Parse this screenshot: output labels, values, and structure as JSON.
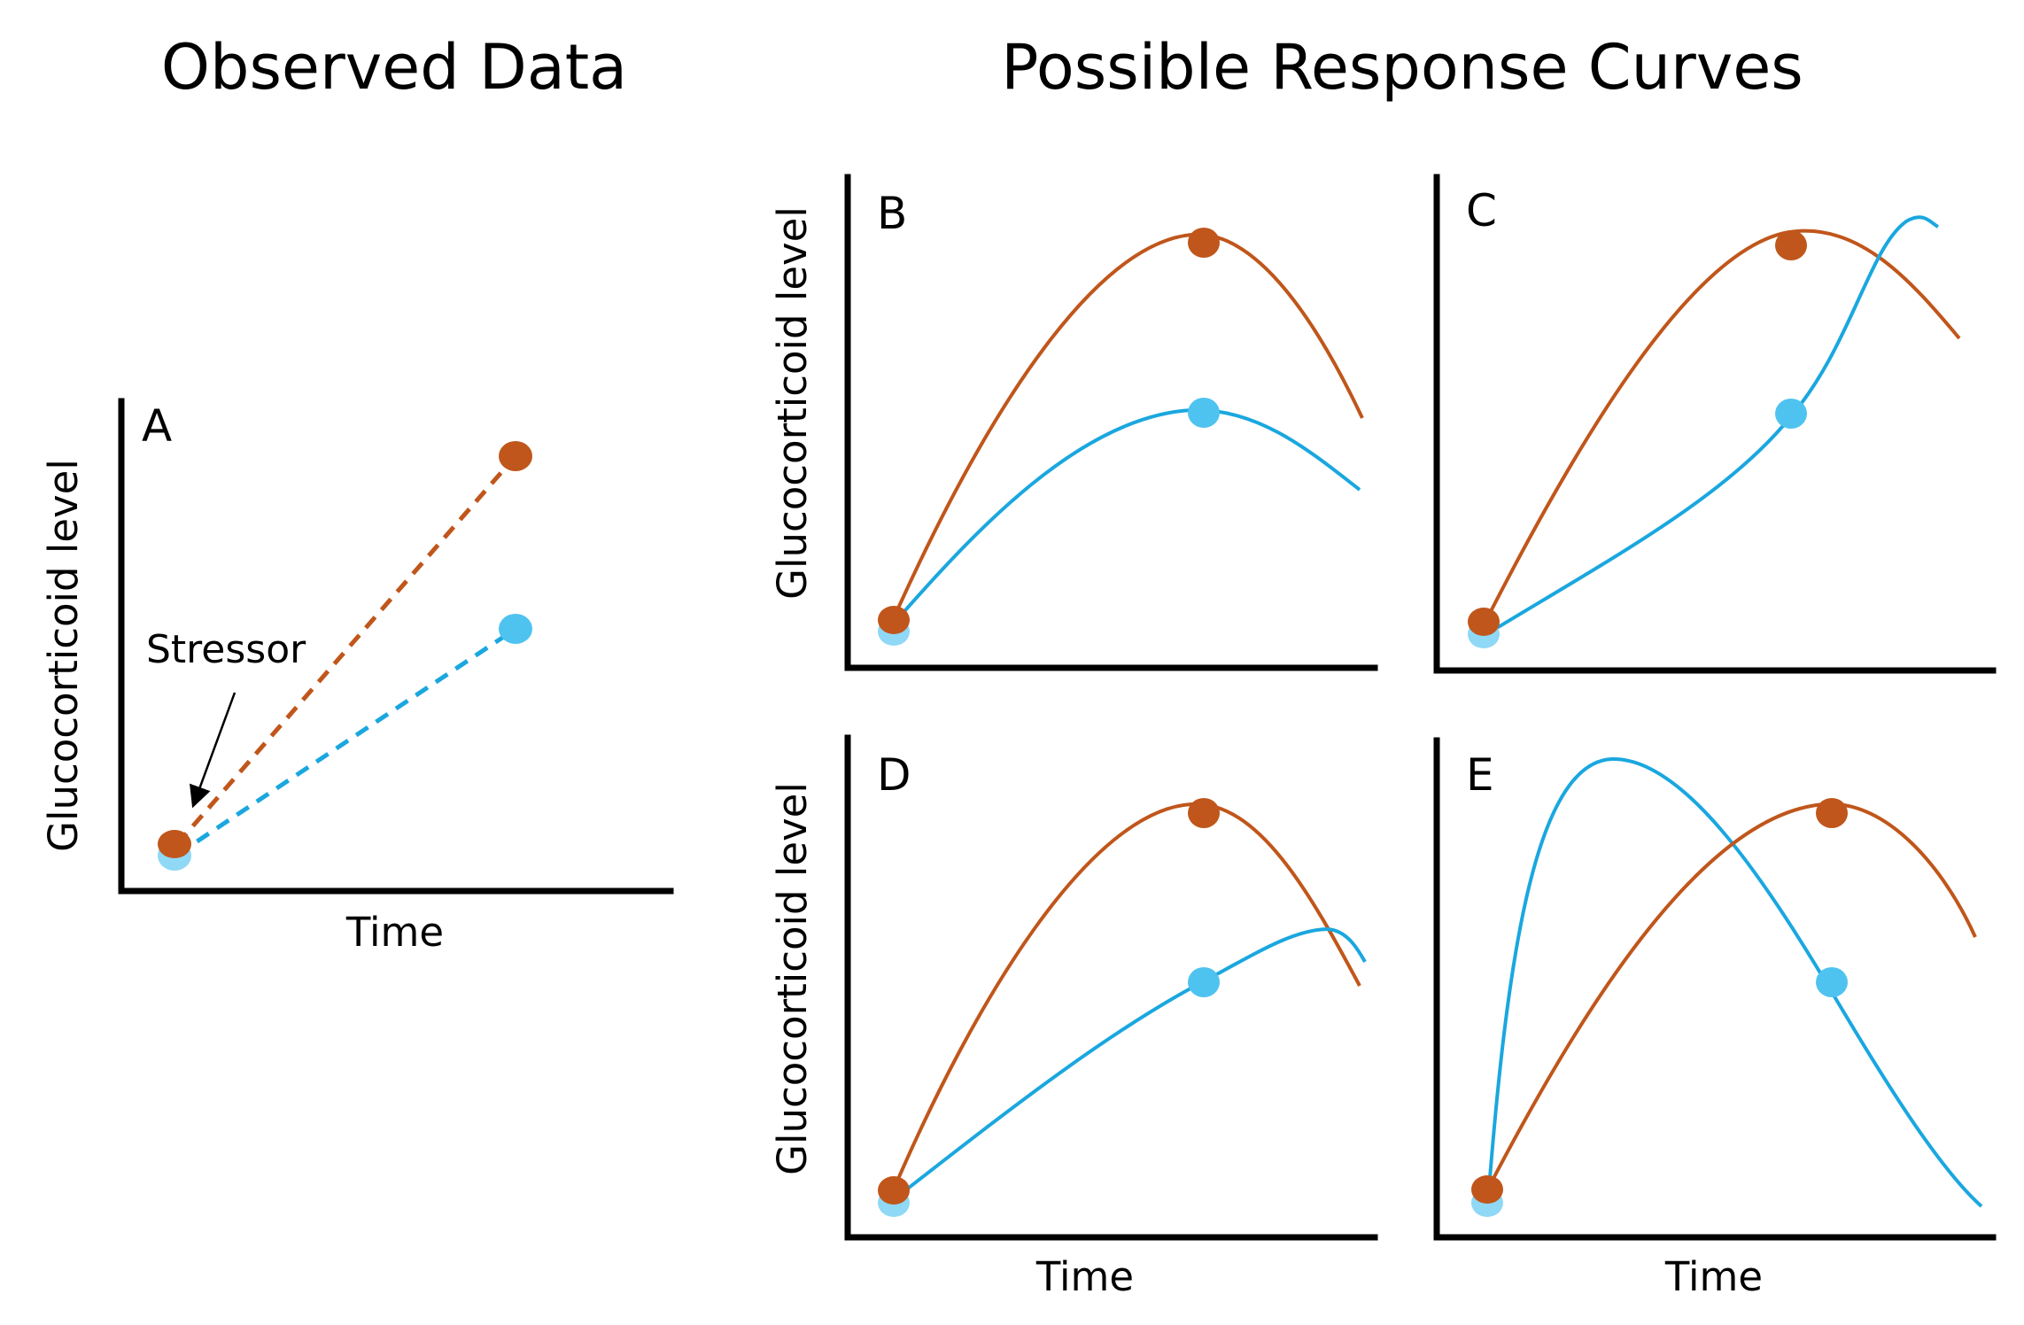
{
  "headings": {
    "observed": "Observed Data",
    "possible": "Possible Response Curves"
  },
  "panels": {
    "A": {
      "letter": "A",
      "xlabel": "Time",
      "ylabel": "Glucocorticoid level",
      "annotation": "Stressor"
    },
    "B": {
      "letter": "B",
      "xlabel": "",
      "ylabel": "Glucocorticoid level"
    },
    "C": {
      "letter": "C",
      "xlabel": "",
      "ylabel": ""
    },
    "D": {
      "letter": "D",
      "xlabel": "Time",
      "ylabel": "Glucocorticoid level"
    },
    "E": {
      "letter": "E",
      "xlabel": "Time",
      "ylabel": ""
    }
  },
  "colors": {
    "orange": "#c0561b",
    "blue": "#1aa7df",
    "blue_point": "#4fc3f0",
    "blue_point_light": "#8fd8f6"
  }
}
